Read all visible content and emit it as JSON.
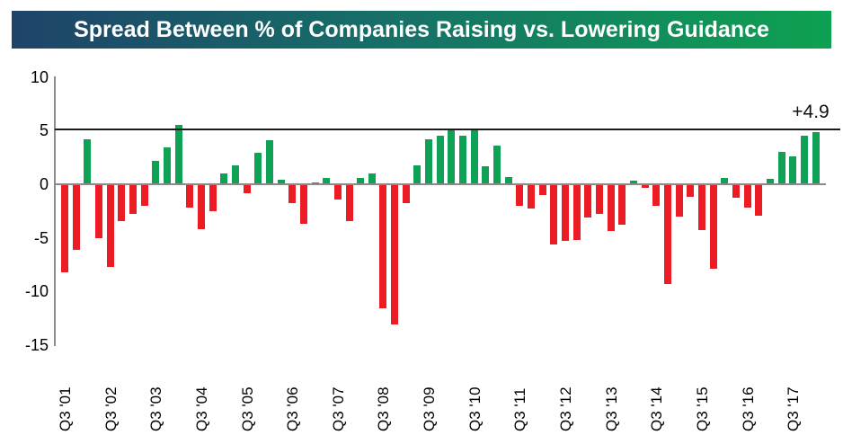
{
  "title": "Spread Between % of Companies Raising vs. Lowering Guidance",
  "annotation": {
    "text": "+4.9"
  },
  "colors": {
    "title_gradient_left": "#1F4369",
    "title_gradient_right": "#0EA151",
    "positive_bar": "#0FA155",
    "negative_bar": "#EC1C24",
    "axis_gray": "#8C8C8C",
    "reference_line": "#1B1B1B"
  },
  "chart_data": {
    "type": "bar",
    "title": "Spread Between % of Companies Raising vs. Lowering Guidance",
    "xlabel": "",
    "ylabel": "",
    "ylim": [
      -15,
      10
    ],
    "y_ticks": [
      10,
      5,
      0,
      -5,
      -10,
      -15
    ],
    "grid": "off",
    "legend": "none",
    "reference_line_y": 5,
    "annotation_last_bar": "+4.9",
    "x_tick_every": 4,
    "x_tick_labels": [
      "Q3 '01",
      "Q3 '02",
      "Q3 '03",
      "Q3 '04",
      "Q3 '05",
      "Q3 '06",
      "Q3 '07",
      "Q3 '08",
      "Q3 '09",
      "Q3 '10",
      "Q3 '11",
      "Q3 '12",
      "Q3 '13",
      "Q3 '14",
      "Q3 '15",
      "Q3 '16",
      "Q3 '17"
    ],
    "values": [
      -8.2,
      -6.1,
      4.2,
      -5.0,
      -7.7,
      -3.4,
      -2.8,
      -2.0,
      2.2,
      3.4,
      5.5,
      -2.2,
      -4.2,
      -2.5,
      1.0,
      1.8,
      -0.8,
      2.9,
      4.1,
      0.4,
      -1.8,
      -3.7,
      0.2,
      0.6,
      -1.4,
      -3.4,
      0.6,
      1.0,
      -11.6,
      -13.1,
      -1.8,
      1.8,
      4.2,
      4.5,
      5.2,
      4.5,
      5.0,
      1.7,
      3.6,
      0.7,
      -2.0,
      -2.3,
      -1.0,
      -5.6,
      -5.3,
      -5.2,
      -3.1,
      -2.8,
      -4.4,
      -3.8,
      0.3,
      -0.3,
      -2.0,
      -9.3,
      -3.0,
      -1.2,
      -4.3,
      -7.9,
      0.6,
      -1.3,
      -2.2,
      -2.9,
      0.5,
      3.0,
      2.6,
      4.5,
      4.9
    ]
  }
}
